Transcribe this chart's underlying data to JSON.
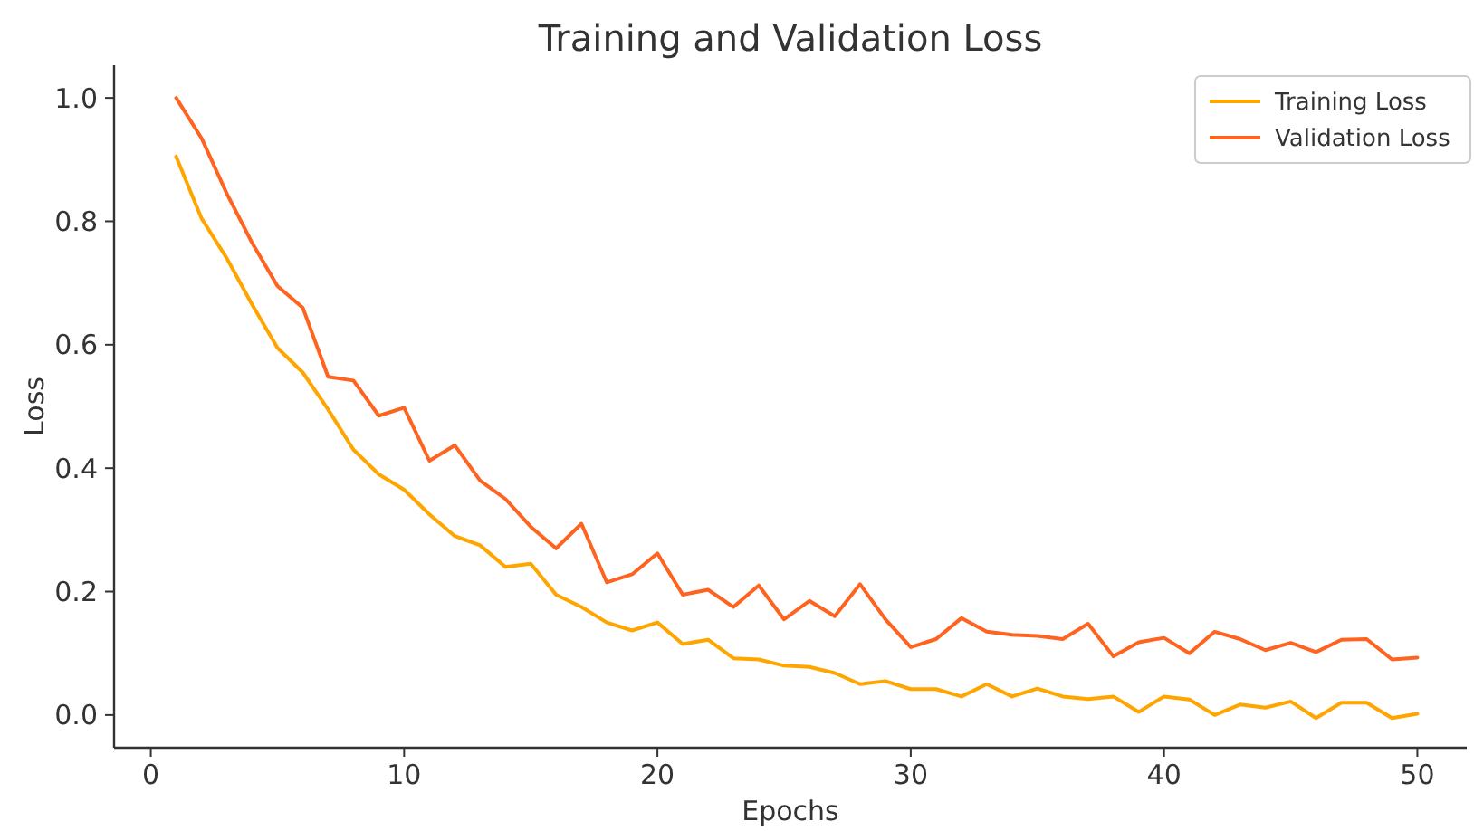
{
  "chart_data": {
    "type": "line",
    "title": "Training and Validation Loss",
    "xlabel": "Epochs",
    "ylabel": "Loss",
    "x": [
      1,
      2,
      3,
      4,
      5,
      6,
      7,
      8,
      9,
      10,
      11,
      12,
      13,
      14,
      15,
      16,
      17,
      18,
      19,
      20,
      21,
      22,
      23,
      24,
      25,
      26,
      27,
      28,
      29,
      30,
      31,
      32,
      33,
      34,
      35,
      36,
      37,
      38,
      39,
      40,
      41,
      42,
      43,
      44,
      45,
      46,
      47,
      48,
      49,
      50
    ],
    "series": [
      {
        "name": "Training Loss",
        "color": "#ffa500",
        "values": [
          0.905,
          0.805,
          0.74,
          0.665,
          0.595,
          0.555,
          0.495,
          0.43,
          0.39,
          0.365,
          0.325,
          0.29,
          0.275,
          0.24,
          0.245,
          0.195,
          0.175,
          0.15,
          0.137,
          0.15,
          0.115,
          0.122,
          0.092,
          0.09,
          0.08,
          0.078,
          0.068,
          0.05,
          0.055,
          0.042,
          0.042,
          0.03,
          0.05,
          0.03,
          0.043,
          0.03,
          0.026,
          0.03,
          0.005,
          0.03,
          0.025,
          0.0,
          0.017,
          0.012,
          0.022,
          -0.005,
          0.02,
          0.02,
          -0.005,
          0.002
        ]
      },
      {
        "name": "Validation Loss",
        "color": "#ff6320",
        "values": [
          1.0,
          0.935,
          0.845,
          0.765,
          0.695,
          0.66,
          0.548,
          0.542,
          0.485,
          0.498,
          0.412,
          0.437,
          0.38,
          0.35,
          0.305,
          0.27,
          0.31,
          0.215,
          0.228,
          0.262,
          0.195,
          0.203,
          0.175,
          0.21,
          0.155,
          0.185,
          0.16,
          0.212,
          0.155,
          0.11,
          0.123,
          0.157,
          0.135,
          0.13,
          0.128,
          0.123,
          0.148,
          0.095,
          0.118,
          0.125,
          0.1,
          0.135,
          0.123,
          0.105,
          0.117,
          0.102,
          0.122,
          0.123,
          0.09,
          0.093
        ]
      }
    ],
    "xlim": [
      -1.45,
      51.95
    ],
    "ylim": [
      -0.053,
      1.053
    ],
    "xticks": [
      0,
      10,
      20,
      30,
      40,
      50
    ],
    "yticks": [
      {
        "value": 0,
        "label": "0.0"
      },
      {
        "value": 0.2,
        "label": "0.2"
      },
      {
        "value": 0.4,
        "label": "0.4"
      },
      {
        "value": 0.6,
        "label": "0.6"
      },
      {
        "value": 0.8,
        "label": "0.8"
      },
      {
        "value": 1,
        "label": "1.0"
      }
    ],
    "legend": "top right",
    "grid": false,
    "marker": "none",
    "line_style": "solid"
  }
}
